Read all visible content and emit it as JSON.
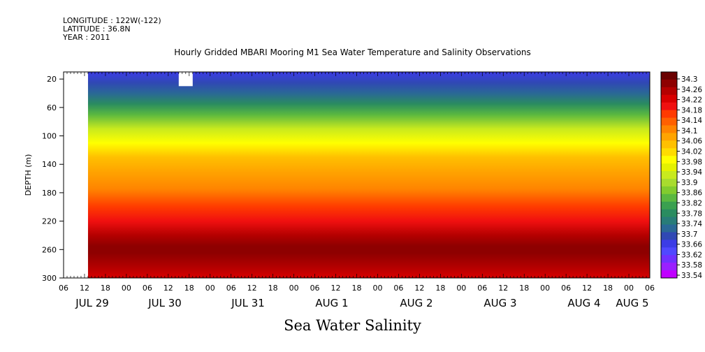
{
  "header": {
    "longitude": "LONGITUDE : 122W(-122)",
    "latitude": "LATITUDE : 36.8N",
    "year": "YEAR : 2011"
  },
  "title": "Hourly Gridded MBARI Mooring M1 Sea Water Temperature and Salinity Observations",
  "footer_title": "Sea Water Salinity",
  "chart_data": {
    "type": "heatmap",
    "title": "Hourly Gridded MBARI Mooring M1 Sea Water Temperature and Salinity Observations",
    "xlabel": "",
    "ylabel": "DEPTH (m)",
    "variable": "Sea Water Salinity",
    "x_range": [
      "JUL 29 06:00",
      "AUG 5 06:00"
    ],
    "x_tick_labels": [
      "06",
      "12",
      "18",
      "00",
      "06",
      "12",
      "18",
      "00",
      "06",
      "12",
      "18",
      "00",
      "06",
      "12",
      "18",
      "00",
      "06",
      "12",
      "18",
      "00",
      "06",
      "12",
      "18",
      "00",
      "06",
      "12",
      "18",
      "00",
      "06"
    ],
    "x_date_labels": [
      "JUL 29",
      "JUL 30",
      "JUL 31",
      "AUG  1",
      "AUG  2",
      "AUG  3",
      "AUG  4",
      "AUG  5"
    ],
    "y_range": [
      10,
      300
    ],
    "y_tick_labels": [
      "20",
      "60",
      "100",
      "140",
      "180",
      "220",
      "260",
      "300"
    ],
    "y_inverted": true,
    "depth_profile": [
      {
        "depth": 10,
        "salinity": 33.66
      },
      {
        "depth": 25,
        "salinity": 33.68
      },
      {
        "depth": 40,
        "salinity": 33.73
      },
      {
        "depth": 55,
        "salinity": 33.78
      },
      {
        "depth": 70,
        "salinity": 33.84
      },
      {
        "depth": 90,
        "salinity": 33.92
      },
      {
        "depth": 110,
        "salinity": 33.97
      },
      {
        "depth": 130,
        "salinity": 34.03
      },
      {
        "depth": 150,
        "salinity": 34.08
      },
      {
        "depth": 175,
        "salinity": 34.11
      },
      {
        "depth": 200,
        "salinity": 34.14
      },
      {
        "depth": 220,
        "salinity": 34.18
      },
      {
        "depth": 240,
        "salinity": 34.23
      },
      {
        "depth": 255,
        "salinity": 34.27
      },
      {
        "depth": 265,
        "salinity": 34.27
      },
      {
        "depth": 285,
        "salinity": 34.24
      },
      {
        "depth": 300,
        "salinity": 34.22
      }
    ],
    "no_data": [
      {
        "from": "JUL 29 06:00",
        "to": "JUL 29 13:00",
        "depth_from": 10,
        "depth_to": 300
      },
      {
        "from": "JUL 30 15:00",
        "to": "JUL 30 19:00",
        "depth_from": 10,
        "depth_to": 30
      }
    ],
    "colorbar": {
      "labels": [
        "34.3",
        "34.26",
        "34.22",
        "34.18",
        "34.14",
        "34.1",
        "34.06",
        "34.02",
        "33.98",
        "33.94",
        "33.9",
        "33.86",
        "33.82",
        "33.78",
        "33.74",
        "33.7",
        "33.66",
        "33.62",
        "33.58",
        "33.54"
      ],
      "colors": [
        "#6a0000",
        "#8e0000",
        "#b40000",
        "#d80000",
        "#f01010",
        "#ff3a00",
        "#ff6000",
        "#ff8400",
        "#ffa400",
        "#ffc000",
        "#ffdc00",
        "#ffff00",
        "#e4f200",
        "#c8ea1e",
        "#a8dc2e",
        "#82cc2e",
        "#5ab840",
        "#3aa050",
        "#2a8c60",
        "#287c78",
        "#2a6896",
        "#3048b4",
        "#3c3ce6",
        "#5048ff",
        "#7030ff",
        "#9a20ff",
        "#c000ff"
      ]
    }
  }
}
